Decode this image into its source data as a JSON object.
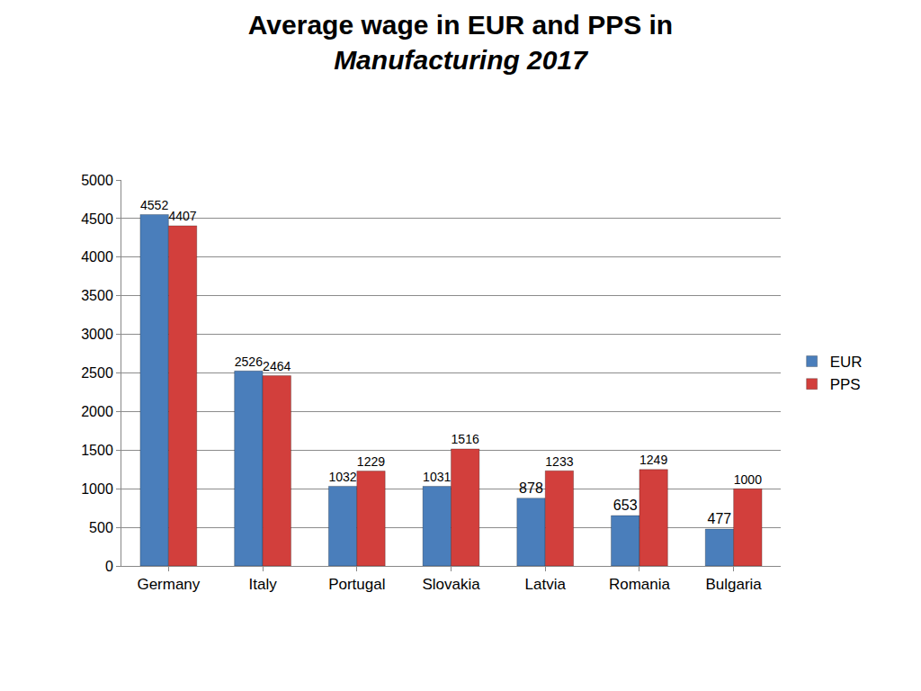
{
  "chart_data": {
    "type": "bar",
    "title": "Average wage in EUR and PPS in\nManufacturing 2017",
    "categories": [
      "Germany",
      "Italy",
      "Portugal",
      "Slovakia",
      "Latvia",
      "Romania",
      "Bulgaria"
    ],
    "series": [
      {
        "name": "EUR",
        "color": "#4a7ebb",
        "values": [
          4552,
          2526,
          1032,
          1031,
          878,
          653,
          477
        ]
      },
      {
        "name": "PPS",
        "color": "#d23f3c",
        "values": [
          4407,
          2464,
          1229,
          1516,
          1233,
          1249,
          1000
        ]
      }
    ],
    "ylim": [
      0,
      5000
    ],
    "yticks": [
      0,
      500,
      1000,
      1500,
      2000,
      2500,
      3000,
      3500,
      4000,
      4500,
      5000
    ],
    "grid": true,
    "legend": "right",
    "data_labels": true
  }
}
